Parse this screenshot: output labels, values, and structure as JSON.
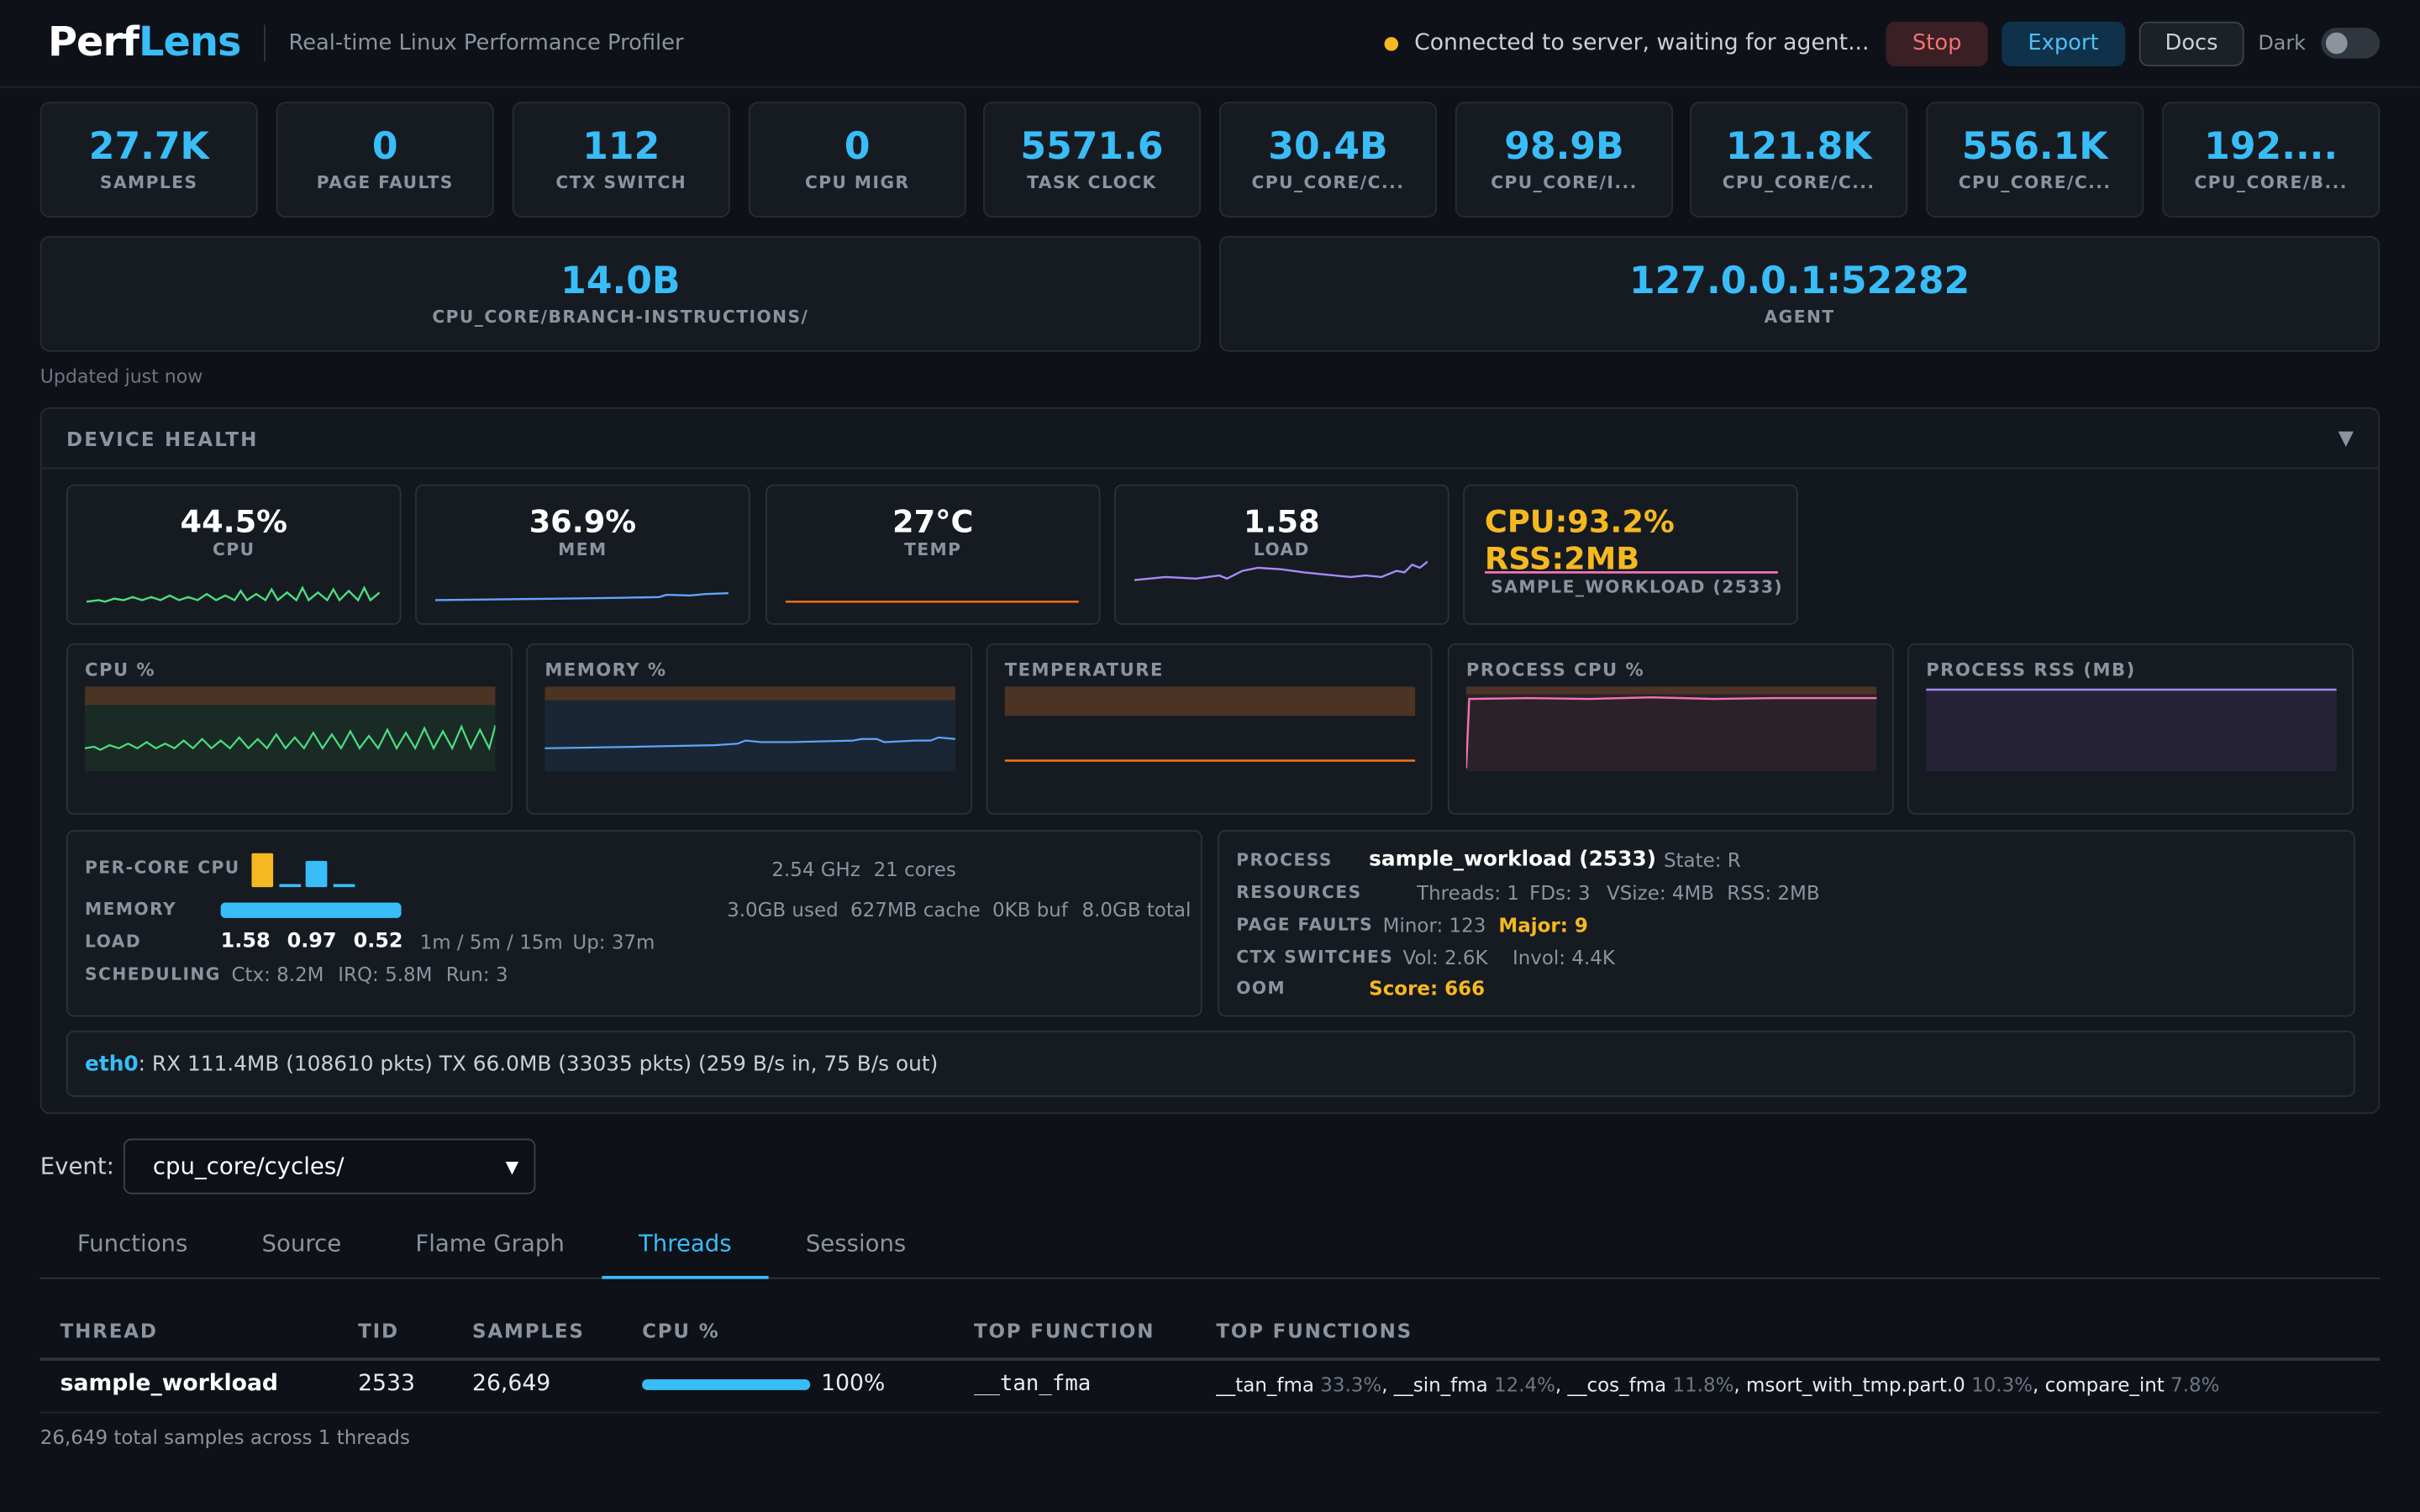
{
  "header": {
    "logo_part1": "Perf",
    "logo_part2": "Lens",
    "subtitle": "Real-time Linux Performance Profiler",
    "status": "Connected to server, waiting for agent...",
    "stop_label": "Stop",
    "export_label": "Export",
    "docs_label": "Docs",
    "theme_label": "Dark"
  },
  "metrics": [
    {
      "value": "27.7K",
      "label": "SAMPLES"
    },
    {
      "value": "0",
      "label": "PAGE FAULTS"
    },
    {
      "value": "112",
      "label": "CTX SWITCH"
    },
    {
      "value": "0",
      "label": "CPU MIGR"
    },
    {
      "value": "5571.6",
      "label": "TASK CLOCK"
    },
    {
      "value": "30.4B",
      "label": "CPU_CORE/C..."
    },
    {
      "value": "98.9B",
      "label": "CPU_CORE/I..."
    },
    {
      "value": "121.8K",
      "label": "CPU_CORE/C..."
    },
    {
      "value": "556.1K",
      "label": "CPU_CORE/C..."
    },
    {
      "value": "192....",
      "label": "CPU_CORE/B..."
    },
    {
      "value": "14.0B",
      "label": "CPU_CORE/BRANCH-INSTRUCTIONS/"
    },
    {
      "value": "127.0.0.1:52282",
      "label": "AGENT"
    }
  ],
  "updated": "Updated just now",
  "health": {
    "title": "DEVICE HEALTH",
    "gauges": [
      {
        "value": "44.5%",
        "label": "CPU"
      },
      {
        "value": "36.9%",
        "label": "MEM"
      },
      {
        "value": "27°C",
        "label": "TEMP"
      },
      {
        "value": "1.58",
        "label": "LOAD"
      },
      {
        "value": "CPU:93.2% RSS:2MB",
        "label": "SAMPLE_WORKLOAD (2533)"
      }
    ],
    "charts": [
      "CPU %",
      "MEMORY %",
      "TEMPERATURE",
      "PROCESS CPU %",
      "PROCESS RSS (MB)"
    ],
    "sys": {
      "percore_label": "PER-CORE CPU",
      "freq": "2.54 GHz",
      "cores": "21 cores",
      "memory_label": "MEMORY",
      "mem_used": "3.0GB used",
      "mem_cache": "627MB cache",
      "mem_buf": "0KB buf",
      "mem_total": "8.0GB total",
      "memory_fraction": 0.375,
      "load_label": "LOAD",
      "load1": "1.58",
      "load5": "0.97",
      "load15": "0.52",
      "load_desc": "1m / 5m / 15m",
      "uptime": "Up: 37m",
      "sched_label": "SCHEDULING",
      "ctx": "Ctx: 8.2M",
      "irq": "IRQ: 5.8M",
      "run": "Run: 3"
    },
    "proc": {
      "process_label": "PROCESS",
      "name": "sample_workload (2533)",
      "state": "State: R",
      "resources_label": "RESOURCES",
      "threads": "Threads: 1",
      "fds": "FDs: 3",
      "vsize": "VSize: 4MB",
      "rss": "RSS: 2MB",
      "faults_label": "PAGE FAULTS",
      "minor": "Minor: 123",
      "major": "Major: 9",
      "ctx_label": "CTX SWITCHES",
      "vol": "Vol: 2.6K",
      "invol": "Invol: 4.4K",
      "oom_label": "OOM",
      "score": "Score: 666"
    },
    "net": {
      "iface": "eth0",
      "text": ": RX 111.4MB (108610 pkts) TX 66.0MB (33035 pkts) (259 B/s in, 75 B/s out)"
    }
  },
  "event": {
    "label": "Event:",
    "selected": "cpu_core/cycles/"
  },
  "tabs": [
    "Functions",
    "Source",
    "Flame Graph",
    "Threads",
    "Sessions"
  ],
  "table": {
    "headers": [
      "THREAD",
      "TID",
      "SAMPLES",
      "CPU %",
      "TOP FUNCTION",
      "TOP FUNCTIONS"
    ],
    "rows": [
      {
        "thread": "sample_workload",
        "tid": "2533",
        "samples": "26,649",
        "cpu_pct": "100%",
        "cpu_fraction": 1.0,
        "top_function": "__tan_fma",
        "top_functions": [
          {
            "name": "__tan_fma",
            "pct": "33.3%",
            "sep": ", "
          },
          {
            "name": "__sin_fma",
            "pct": "12.4%",
            "sep": ", "
          },
          {
            "name": "__cos_fma",
            "pct": "11.8%",
            "sep": ", "
          },
          {
            "name": "msort_with_tmp.part.0",
            "pct": "10.3%",
            "sep": ", "
          },
          {
            "name": "compare_int",
            "pct": "7.8%",
            "sep": ""
          }
        ]
      }
    ],
    "footer": "26,649 total samples across 1 threads"
  },
  "colors": {
    "accent": "#38bdf8",
    "warn": "#f5b820",
    "cpu_line": "#4ade80",
    "mem_line": "#60a5fa",
    "temp_line": "#f97316",
    "load_line": "#a78bfa",
    "proc_line": "#f472b6"
  }
}
